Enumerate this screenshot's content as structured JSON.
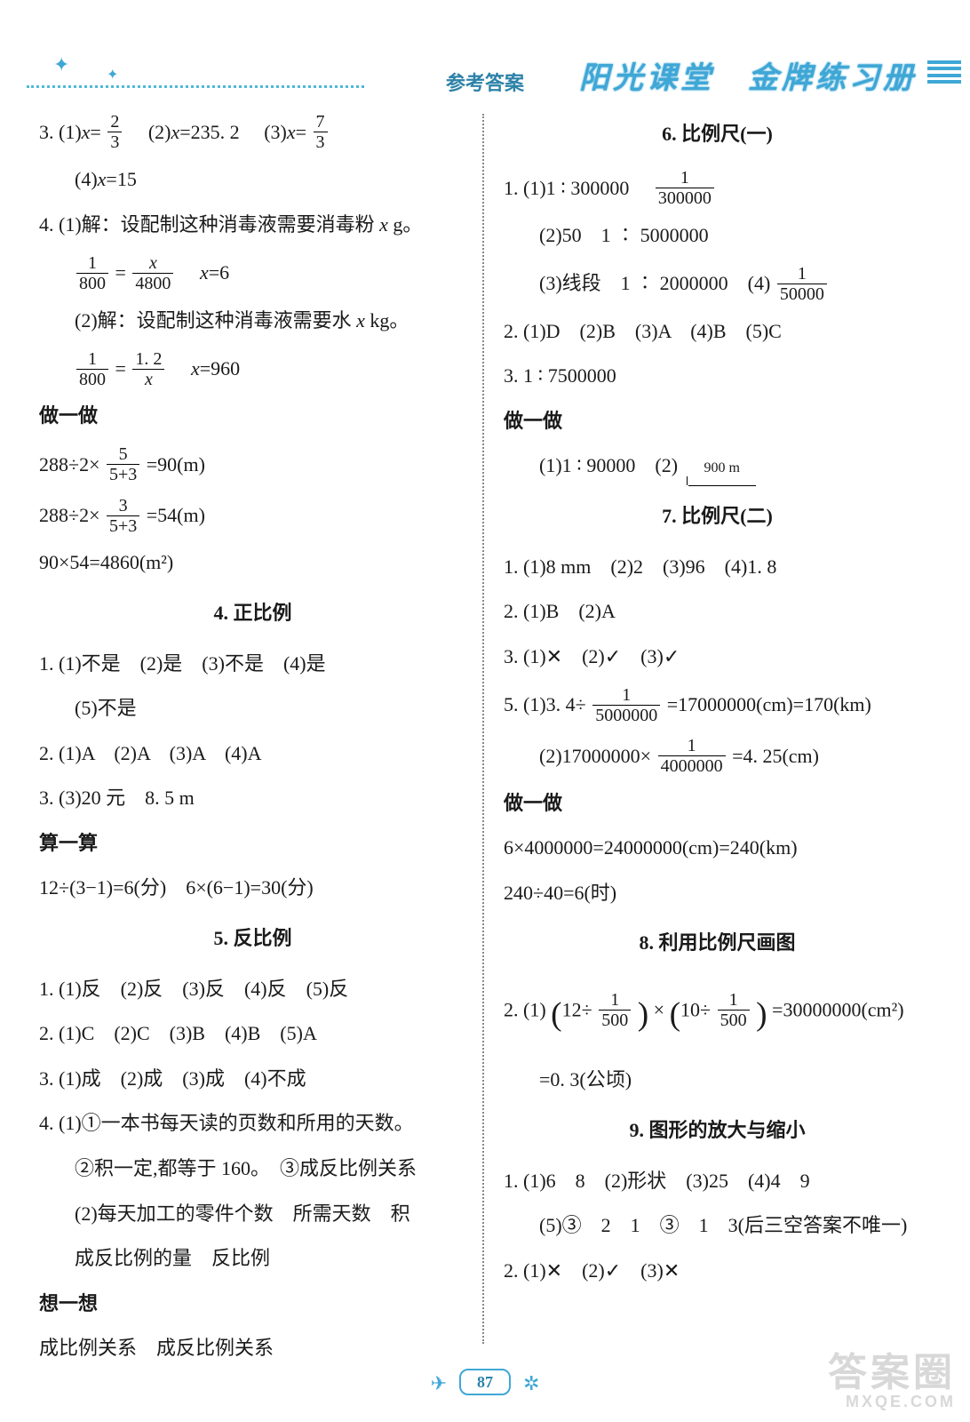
{
  "header": {
    "center": "参考答案",
    "right": "阳光课堂　金牌练习册"
  },
  "footer": {
    "page": "87"
  },
  "watermark": {
    "line1": "答案圈",
    "line2": "MXQE.COM"
  },
  "left": {
    "l3": "3. (1)",
    "l3a": "=",
    "l3a_num": "2",
    "l3a_den": "3",
    "l3b": "　(2)",
    "l3b_v": "=235. 2",
    "l3c": "　(3)",
    "l3c_num": "7",
    "l3c_den": "3",
    "l3d": "(4)",
    "l3d_v": "=15",
    "l4a": "4. (1)解：设配制这种消毒液需要消毒粉 ",
    "l4a2": " g。",
    "l4eq1_n1": "1",
    "l4eq1_d1": "800",
    "l4eq1_n2": "x",
    "l4eq1_d2": "4800",
    "l4eq1_r": "　x=6",
    "l4b": "(2)解：设配制这种消毒液需要水 ",
    "l4b2": " kg。",
    "l4eq2_n1": "1",
    "l4eq2_d1": "800",
    "l4eq2_n2": "1. 2",
    "l4eq2_d2": "x",
    "l4eq2_r": "　x=960",
    "zyz": "做一做",
    "z1a": "288÷2×",
    "z1n": "5",
    "z1d": "5+3",
    "z1b": "=90(m)",
    "z2a": "288÷2×",
    "z2n": "3",
    "z2d": "5+3",
    "z2b": "=54(m)",
    "z3": "90×54=4860(m²)",
    "s4": "4. 正比例",
    "s4_1": "1. (1)不是　(2)是　(3)不是　(4)是",
    "s4_1b": "(5)不是",
    "s4_2": "2. (1)A　(2)A　(3)A　(4)A",
    "s4_3": "3. (3)20 元　8. 5 m",
    "sys": "算一算",
    "sys1": "12÷(3−1)=6(分)　6×(6−1)=30(分)",
    "s5": "5. 反比例",
    "s5_1": "1. (1)反　(2)反　(3)反　(4)反　(5)反",
    "s5_2": "2. (1)C　(2)C　(3)B　(4)B　(5)A",
    "s5_3": "3. (1)成　(2)成　(3)成　(4)不成",
    "s5_4a": "4. (1)①一本书每天读的页数和所用的天数。",
    "s5_4b": "②积一定,都等于 160。　③成反比例关系",
    "s5_4c": "(2)每天加工的零件个数　所需天数　积",
    "s5_4d": "成反比例的量　反比例",
    "xyx": "想一想",
    "xyx1": "成比例关系　成反比例关系"
  },
  "right": {
    "s6": "6. 比例尺(一)",
    "s6_1a": "1. (1)1 ∶ 300000　",
    "s6_1a_n": "1",
    "s6_1a_d": "300000",
    "s6_1b": "(2)50　1 ∶ 5000000",
    "s6_1c": "(3)线段　1 ∶ 2000000　(4)",
    "s6_1c_n": "1",
    "s6_1c_d": "50000",
    "s6_2": "2. (1)D　(2)B　(3)A　(4)B　(5)C",
    "s6_3": "3. 1 ∶ 7500000",
    "zyz": "做一做",
    "s6_z": "(1)1 ∶ 90000　(2)",
    "s6_z_seg": "900 m",
    "s7": "7. 比例尺(二)",
    "s7_1": "1. (1)8 mm　(2)2　(3)96　(4)1. 8",
    "s7_2": "2. (1)B　(2)A",
    "s7_3": "3. (1)✕　(2)✓　(3)✓",
    "s7_5a": "5. (1)3. 4÷",
    "s7_5a_n": "1",
    "s7_5a_d": "5000000",
    "s7_5a2": "=17000000(cm)=170(km)",
    "s7_5b": "(2)17000000×",
    "s7_5b_n": "1",
    "s7_5b_d": "4000000",
    "s7_5b2": "=4. 25(cm)",
    "s7_z1": "6×4000000=24000000(cm)=240(km)",
    "s7_z2": "240÷40=6(时)",
    "s8": "8. 利用比例尺画图",
    "s8_2a": "2. (1)",
    "s8_2_a1": "12÷",
    "s8_2_n1": "1",
    "s8_2_d1": "500",
    "s8_2_mid": "×",
    "s8_2_a2": "10÷",
    "s8_2_n2": "1",
    "s8_2_d2": "500",
    "s8_2b": "=30000000(cm²)",
    "s8_2c": "=0. 3(公顷)",
    "s9": "9. 图形的放大与缩小",
    "s9_1": "1. (1)6　8　(2)形状　(3)25　(4)4　9",
    "s9_1b": "(5)③　2　1　③　1　3(后三空答案不唯一)",
    "s9_2": "2. (1)✕　(2)✓　(3)✕"
  }
}
